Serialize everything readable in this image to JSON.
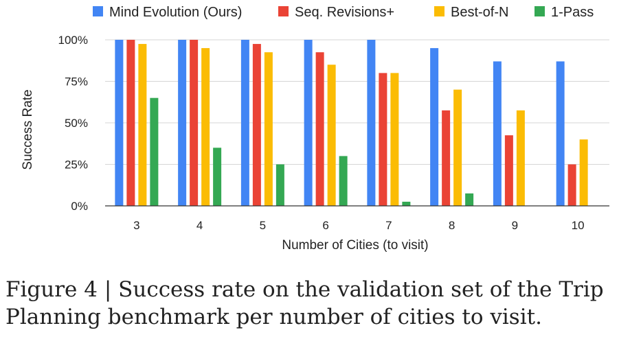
{
  "chart_data": {
    "type": "bar",
    "title": "",
    "xlabel": "Number of Cities (to visit)",
    "ylabel": "Success Rate",
    "categories": [
      "3",
      "4",
      "5",
      "6",
      "7",
      "8",
      "9",
      "10"
    ],
    "ylim": [
      0,
      100
    ],
    "yticks": [
      "0%",
      "25%",
      "50%",
      "75%",
      "100%"
    ],
    "grid": true,
    "legend_position": "top",
    "series": [
      {
        "name": "Mind Evolution (Ours)",
        "color": "#4285F4",
        "values": [
          100,
          100,
          100,
          100,
          100,
          95,
          87,
          87
        ]
      },
      {
        "name": "Seq. Revisions+",
        "color": "#EA4335",
        "values": [
          100,
          100,
          97.5,
          92.5,
          80,
          57.5,
          42.5,
          25
        ]
      },
      {
        "name": "Best-of-N",
        "color": "#FBBC04",
        "values": [
          97.5,
          95,
          92.5,
          85,
          80,
          70,
          57.5,
          40
        ]
      },
      {
        "name": "1-Pass",
        "color": "#34A853",
        "values": [
          65,
          35,
          25,
          30,
          2.5,
          7.5,
          0,
          0
        ]
      }
    ]
  },
  "caption": {
    "line1": "Figure 4 | Success rate on the validation set of the Trip",
    "line2": "Planning benchmark per number of cities to visit."
  }
}
